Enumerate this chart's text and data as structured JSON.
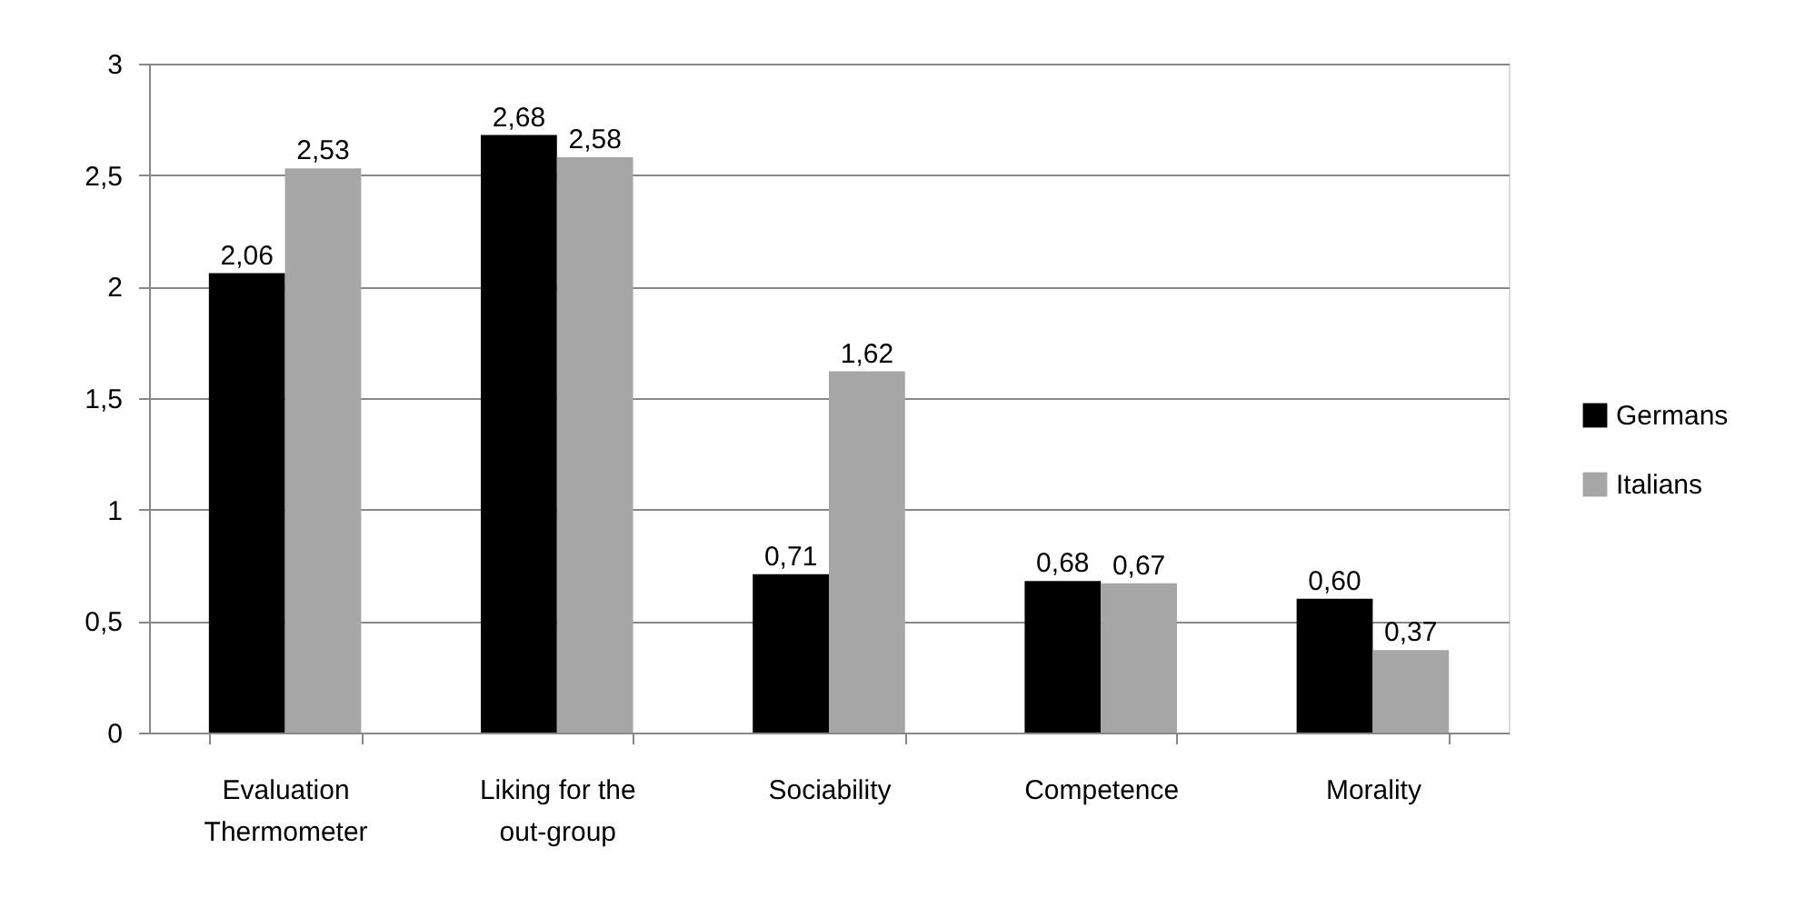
{
  "chart_data": {
    "type": "bar",
    "categories": [
      "Evaluation Thermometer",
      "Liking for the out-group",
      "Sociability",
      "Competence",
      "Morality"
    ],
    "series": [
      {
        "name": "Germans",
        "color": "#000000",
        "values": [
          2.06,
          2.68,
          0.71,
          0.68,
          0.6
        ],
        "value_labels": [
          "2,06",
          "2,68",
          "0,71",
          "0,68",
          "0,60"
        ]
      },
      {
        "name": "Italians",
        "color": "#a6a6a6",
        "values": [
          2.53,
          2.58,
          1.62,
          0.67,
          0.37
        ],
        "value_labels": [
          "2,53",
          "2,58",
          "1,62",
          "0,67",
          "0,37"
        ]
      }
    ],
    "ylim": [
      0,
      3
    ],
    "yticks": [
      0,
      {
        "value": 0.5,
        "label": "0,5"
      },
      1,
      {
        "value": 1.5,
        "label": "1,5"
      },
      2,
      {
        "value": 2.5,
        "label": "2,5"
      },
      3
    ],
    "grid": "y",
    "legend": "right"
  }
}
